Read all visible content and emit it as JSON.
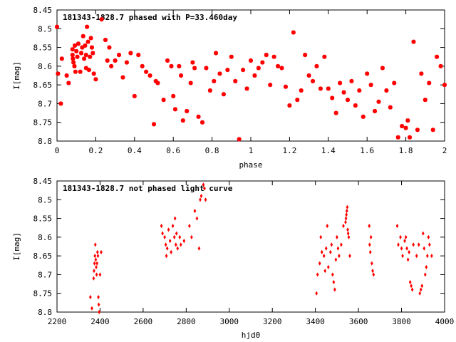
{
  "chart_data": [
    {
      "type": "scatter",
      "title": "181343-1828.7 phased with P=33.460day",
      "xlabel": "phase",
      "ylabel": "I[mag]",
      "xlim": [
        0,
        2
      ],
      "ylim": [
        8.8,
        8.45
      ],
      "y_inverted": true,
      "xticks": [
        0,
        0.2,
        0.4,
        0.6,
        0.8,
        1,
        1.2,
        1.4,
        1.6,
        1.8,
        2
      ],
      "xtick_labels": [
        "0",
        "0.2",
        "0.4",
        "0.6",
        "0.8",
        "1",
        "1.2",
        "1.4",
        "1.6",
        "1.8",
        "2"
      ],
      "yticks": [
        8.45,
        8.5,
        8.55,
        8.6,
        8.65,
        8.7,
        8.75,
        8.8
      ],
      "ytick_labels": [
        "8.45",
        "8.5",
        "8.55",
        "8.6",
        "8.65",
        "8.7",
        "8.75",
        "8.8"
      ],
      "grid": false,
      "marker_color": "#ff0000",
      "marker": "star",
      "series": [
        {
          "points": [
            [
              0.0,
              8.495
            ],
            [
              0.005,
              8.62
            ],
            [
              0.02,
              8.7
            ],
            [
              0.025,
              8.58
            ],
            [
              0.05,
              8.625
            ],
            [
              0.06,
              8.645
            ],
            [
              0.08,
              8.555
            ],
            [
              0.08,
              8.57
            ],
            [
              0.082,
              8.58
            ],
            [
              0.085,
              8.59
            ],
            [
              0.09,
              8.6
            ],
            [
              0.092,
              8.545
            ],
            [
              0.095,
              8.615
            ],
            [
              0.1,
              8.56
            ],
            [
              0.105,
              8.575
            ],
            [
              0.11,
              8.54
            ],
            [
              0.12,
              8.615
            ],
            [
              0.125,
              8.565
            ],
            [
              0.13,
              8.55
            ],
            [
              0.135,
              8.52
            ],
            [
              0.14,
              8.58
            ],
            [
              0.145,
              8.545
            ],
            [
              0.15,
              8.605
            ],
            [
              0.15,
              8.57
            ],
            [
              0.155,
              8.495
            ],
            [
              0.16,
              8.535
            ],
            [
              0.165,
              8.61
            ],
            [
              0.17,
              8.575
            ],
            [
              0.175,
              8.525
            ],
            [
              0.18,
              8.55
            ],
            [
              0.185,
              8.565
            ],
            [
              0.19,
              8.62
            ],
            [
              0.2,
              8.635
            ],
            [
              0.23,
              8.475
            ],
            [
              0.25,
              8.53
            ],
            [
              0.26,
              8.585
            ],
            [
              0.27,
              8.55
            ],
            [
              0.28,
              8.6
            ],
            [
              0.3,
              8.585
            ],
            [
              0.32,
              8.57
            ],
            [
              0.34,
              8.63
            ],
            [
              0.36,
              8.59
            ],
            [
              0.38,
              8.565
            ],
            [
              0.4,
              8.68
            ],
            [
              0.42,
              8.57
            ],
            [
              0.44,
              8.6
            ],
            [
              0.46,
              8.615
            ],
            [
              0.48,
              8.625
            ],
            [
              0.5,
              8.755
            ],
            [
              0.51,
              8.64
            ],
            [
              0.52,
              8.645
            ],
            [
              0.55,
              8.69
            ],
            [
              0.57,
              8.585
            ],
            [
              0.59,
              8.6
            ],
            [
              0.6,
              8.68
            ],
            [
              0.61,
              8.715
            ],
            [
              0.63,
              8.6
            ],
            [
              0.64,
              8.625
            ],
            [
              0.65,
              8.745
            ],
            [
              0.67,
              8.72
            ],
            [
              0.69,
              8.645
            ],
            [
              0.7,
              8.59
            ],
            [
              0.71,
              8.605
            ],
            [
              0.73,
              8.735
            ],
            [
              0.75,
              8.75
            ],
            [
              0.77,
              8.605
            ],
            [
              0.79,
              8.665
            ],
            [
              0.81,
              8.64
            ],
            [
              0.82,
              8.565
            ],
            [
              0.84,
              8.62
            ],
            [
              0.86,
              8.675
            ],
            [
              0.88,
              8.61
            ],
            [
              0.9,
              8.575
            ],
            [
              0.92,
              8.64
            ],
            [
              0.94,
              8.795
            ],
            [
              0.96,
              8.61
            ],
            [
              0.98,
              8.66
            ],
            [
              1.0,
              8.585
            ],
            [
              1.02,
              8.625
            ],
            [
              1.04,
              8.605
            ],
            [
              1.06,
              8.59
            ],
            [
              1.08,
              8.57
            ],
            [
              1.1,
              8.65
            ],
            [
              1.12,
              8.575
            ],
            [
              1.14,
              8.6
            ],
            [
              1.16,
              8.605
            ],
            [
              1.18,
              8.655
            ],
            [
              1.2,
              8.705
            ],
            [
              1.22,
              8.51
            ],
            [
              1.24,
              8.69
            ],
            [
              1.26,
              8.665
            ],
            [
              1.28,
              8.57
            ],
            [
              1.3,
              8.625
            ],
            [
              1.32,
              8.64
            ],
            [
              1.34,
              8.6
            ],
            [
              1.36,
              8.66
            ],
            [
              1.38,
              8.575
            ],
            [
              1.4,
              8.66
            ],
            [
              1.42,
              8.685
            ],
            [
              1.44,
              8.725
            ],
            [
              1.46,
              8.645
            ],
            [
              1.48,
              8.67
            ],
            [
              1.5,
              8.69
            ],
            [
              1.52,
              8.64
            ],
            [
              1.54,
              8.705
            ],
            [
              1.56,
              8.665
            ],
            [
              1.58,
              8.735
            ],
            [
              1.6,
              8.62
            ],
            [
              1.62,
              8.65
            ],
            [
              1.64,
              8.72
            ],
            [
              1.66,
              8.695
            ],
            [
              1.68,
              8.605
            ],
            [
              1.7,
              8.665
            ],
            [
              1.72,
              8.71
            ],
            [
              1.74,
              8.645
            ],
            [
              1.76,
              8.79
            ],
            [
              1.78,
              8.76
            ],
            [
              1.8,
              8.765
            ],
            [
              1.81,
              8.745
            ],
            [
              1.82,
              8.79
            ],
            [
              1.84,
              8.535
            ],
            [
              1.86,
              8.77
            ],
            [
              1.88,
              8.62
            ],
            [
              1.9,
              8.69
            ],
            [
              1.92,
              8.645
            ],
            [
              1.94,
              8.77
            ],
            [
              1.96,
              8.575
            ],
            [
              1.98,
              8.6
            ],
            [
              2.0,
              8.65
            ]
          ]
        }
      ]
    },
    {
      "type": "scatter",
      "title": "181343-1828.7 not phased light curve",
      "xlabel": "hjd0",
      "ylabel": "I[mag]",
      "xlim": [
        2200,
        4000
      ],
      "ylim": [
        8.8,
        8.45
      ],
      "y_inverted": true,
      "xticks": [
        2200,
        2400,
        2600,
        2800,
        3000,
        3200,
        3400,
        3600,
        3800,
        4000
      ],
      "xtick_labels": [
        "2200",
        "2400",
        "2600",
        "2800",
        "3000",
        "3200",
        "3400",
        "3600",
        "3800",
        "4000"
      ],
      "yticks": [
        8.45,
        8.5,
        8.55,
        8.6,
        8.65,
        8.7,
        8.75,
        8.8
      ],
      "ytick_labels": [
        "8.45",
        "8.5",
        "8.55",
        "8.6",
        "8.65",
        "8.7",
        "8.75",
        "8.8"
      ],
      "grid": false,
      "marker_color": "#ff0000",
      "marker": "diamond",
      "series": [
        {
          "points": [
            [
              2355,
              8.76
            ],
            [
              2362,
              8.79
            ],
            [
              2370,
              8.71
            ],
            [
              2372,
              8.69
            ],
            [
              2374,
              8.67
            ],
            [
              2376,
              8.65
            ],
            [
              2378,
              8.62
            ],
            [
              2380,
              8.66
            ],
            [
              2382,
              8.68
            ],
            [
              2384,
              8.7
            ],
            [
              2386,
              8.67
            ],
            [
              2388,
              8.64
            ],
            [
              2390,
              8.65
            ],
            [
              2392,
              8.76
            ],
            [
              2394,
              8.78
            ],
            [
              2396,
              8.8
            ],
            [
              2400,
              8.7
            ],
            [
              2405,
              8.64
            ],
            [
              2685,
              8.57
            ],
            [
              2690,
              8.59
            ],
            [
              2700,
              8.6
            ],
            [
              2705,
              8.62
            ],
            [
              2708,
              8.65
            ],
            [
              2712,
              8.63
            ],
            [
              2718,
              8.58
            ],
            [
              2725,
              8.61
            ],
            [
              2730,
              8.64
            ],
            [
              2738,
              8.57
            ],
            [
              2745,
              8.6
            ],
            [
              2748,
              8.55
            ],
            [
              2752,
              8.62
            ],
            [
              2755,
              8.59
            ],
            [
              2760,
              8.63
            ],
            [
              2770,
              8.6
            ],
            [
              2775,
              8.62
            ],
            [
              2790,
              8.61
            ],
            [
              2815,
              8.57
            ],
            [
              2825,
              8.6
            ],
            [
              2840,
              8.53
            ],
            [
              2850,
              8.55
            ],
            [
              2860,
              8.63
            ],
            [
              2865,
              8.5
            ],
            [
              2870,
              8.49
            ],
            [
              2880,
              8.46
            ],
            [
              2885,
              8.47
            ],
            [
              2890,
              8.5
            ],
            [
              3405,
              8.75
            ],
            [
              3410,
              8.7
            ],
            [
              3420,
              8.67
            ],
            [
              3425,
              8.6
            ],
            [
              3430,
              8.64
            ],
            [
              3440,
              8.65
            ],
            [
              3445,
              8.69
            ],
            [
              3450,
              8.63
            ],
            [
              3455,
              8.57
            ],
            [
              3460,
              8.68
            ],
            [
              3470,
              8.64
            ],
            [
              3475,
              8.62
            ],
            [
              3480,
              8.7
            ],
            [
              3485,
              8.72
            ],
            [
              3490,
              8.74
            ],
            [
              3495,
              8.66
            ],
            [
              3500,
              8.6
            ],
            [
              3505,
              8.63
            ],
            [
              3510,
              8.65
            ],
            [
              3520,
              8.62
            ],
            [
              3530,
              8.57
            ],
            [
              3540,
              8.56
            ],
            [
              3542,
              8.55
            ],
            [
              3544,
              8.54
            ],
            [
              3546,
              8.53
            ],
            [
              3548,
              8.52
            ],
            [
              3550,
              8.58
            ],
            [
              3552,
              8.59
            ],
            [
              3555,
              8.6
            ],
            [
              3560,
              8.65
            ],
            [
              3650,
              8.57
            ],
            [
              3652,
              8.62
            ],
            [
              3655,
              8.64
            ],
            [
              3658,
              8.6
            ],
            [
              3662,
              8.67
            ],
            [
              3666,
              8.69
            ],
            [
              3670,
              8.7
            ],
            [
              3780,
              8.57
            ],
            [
              3785,
              8.62
            ],
            [
              3795,
              8.6
            ],
            [
              3800,
              8.63
            ],
            [
              3805,
              8.65
            ],
            [
              3815,
              8.61
            ],
            [
              3820,
              8.6
            ],
            [
              3825,
              8.63
            ],
            [
              3830,
              8.66
            ],
            [
              3835,
              8.64
            ],
            [
              3840,
              8.72
            ],
            [
              3845,
              8.73
            ],
            [
              3850,
              8.74
            ],
            [
              3855,
              8.62
            ],
            [
              3870,
              8.65
            ],
            [
              3880,
              8.62
            ],
            [
              3885,
              8.75
            ],
            [
              3890,
              8.74
            ],
            [
              3895,
              8.73
            ],
            [
              3900,
              8.59
            ],
            [
              3905,
              8.63
            ],
            [
              3910,
              8.7
            ],
            [
              3915,
              8.68
            ],
            [
              3920,
              8.65
            ],
            [
              3925,
              8.6
            ],
            [
              3930,
              8.62
            ],
            [
              3940,
              8.65
            ]
          ]
        }
      ]
    }
  ]
}
